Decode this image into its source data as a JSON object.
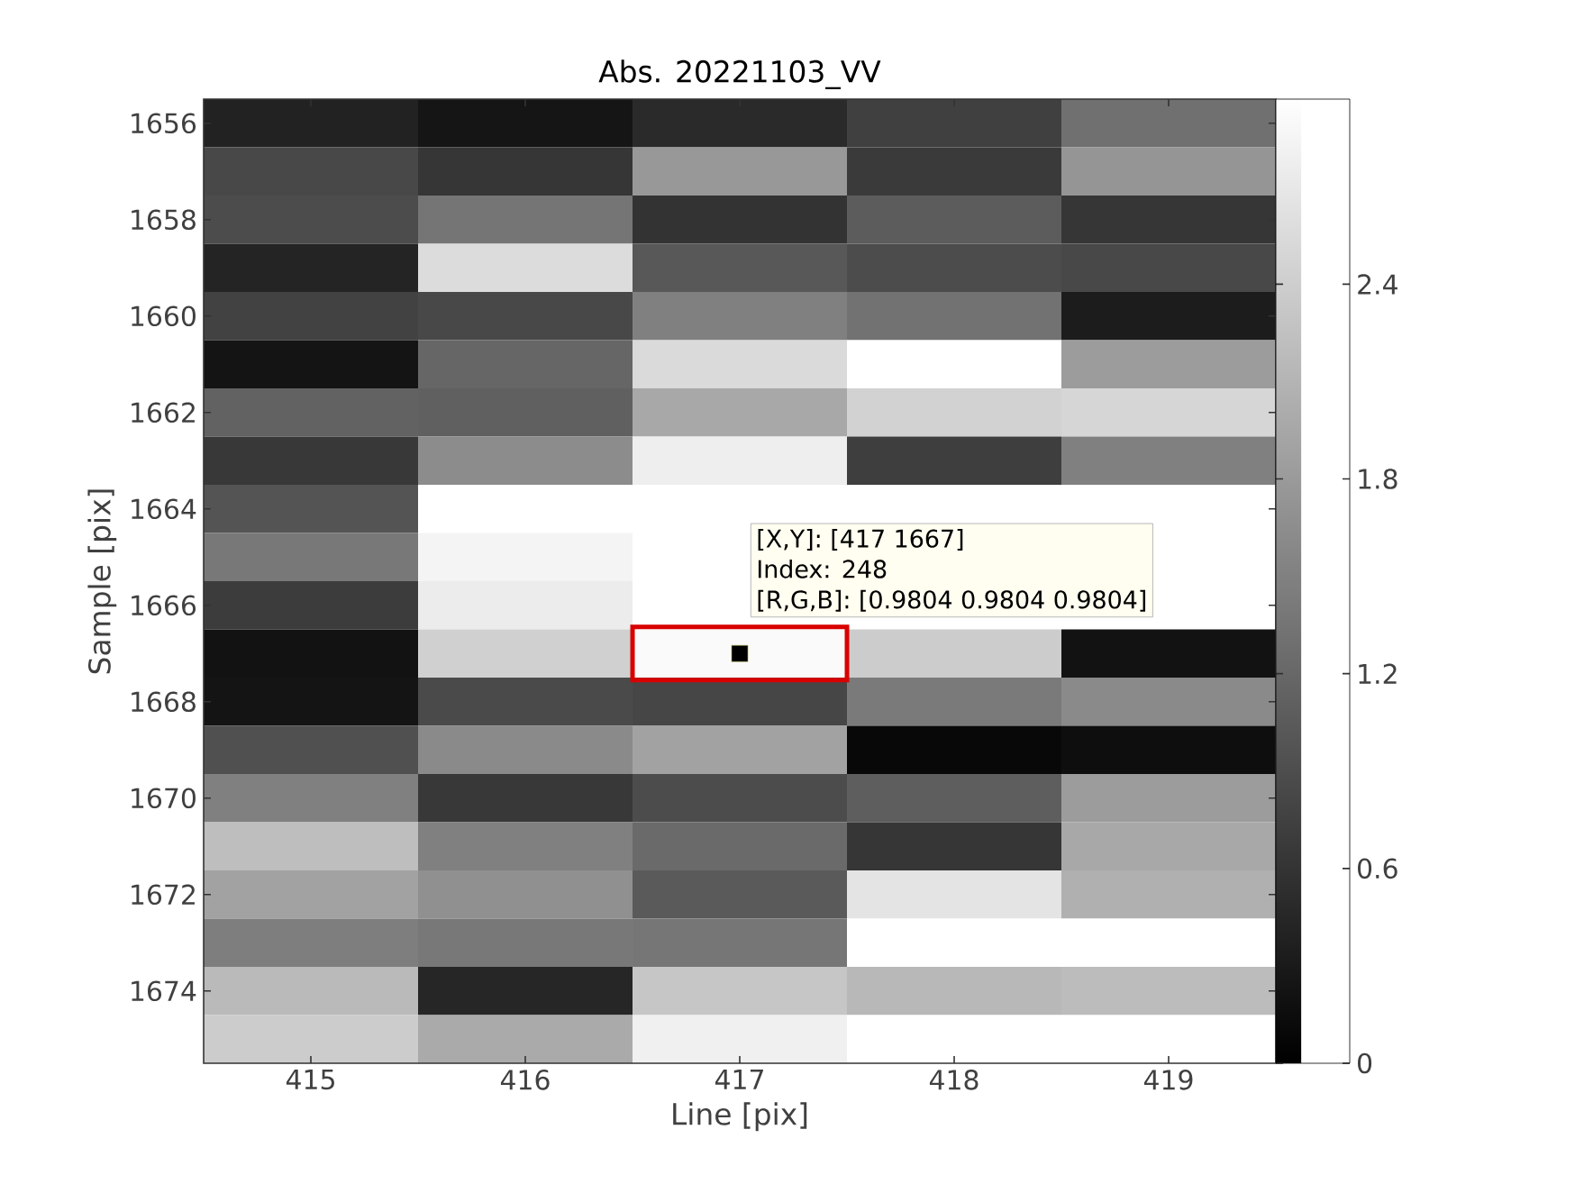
{
  "chart_data": {
    "type": "heatmap",
    "title": "Abs. 20221103_VV",
    "xlabel": "Line [pix]",
    "ylabel": "Sample [pix]",
    "categories": [
      "415",
      "416",
      "417",
      "418",
      "419"
    ],
    "y_categories": [
      "1656",
      null,
      "1658",
      null,
      "1660",
      null,
      "1662",
      null,
      "1664",
      null,
      "1666",
      null,
      "1668",
      null,
      "1670",
      null,
      "1672",
      null,
      "1674",
      null
    ],
    "cells": [
      [
        0.4,
        0.24,
        0.49,
        0.75,
        1.3
      ],
      [
        0.84,
        0.63,
        1.77,
        0.68,
        1.74
      ],
      [
        0.89,
        1.36,
        0.59,
        1.07,
        0.63
      ],
      [
        0.42,
        2.56,
        1.02,
        0.89,
        0.84
      ],
      [
        0.77,
        0.84,
        1.49,
        1.33,
        0.33
      ],
      [
        0.23,
        1.19,
        2.54,
        2.97,
        1.82
      ],
      [
        1.14,
        1.12,
        1.96,
        2.45,
        2.49
      ],
      [
        0.65,
        1.63,
        2.77,
        0.72,
        1.49
      ],
      [
        0.98,
        2.97,
        2.97,
        null,
        null
      ],
      [
        1.4,
        2.84,
        2.97,
        null,
        null
      ],
      [
        0.7,
        2.75,
        2.97,
        null,
        null
      ],
      [
        0.21,
        2.42,
        2.91,
        2.38,
        0.21
      ],
      [
        0.23,
        0.86,
        0.82,
        1.42,
        1.61
      ],
      [
        0.93,
        1.61,
        1.89,
        0.09,
        0.16
      ],
      [
        1.49,
        0.65,
        0.89,
        1.09,
        1.82
      ],
      [
        2.21,
        1.49,
        1.23,
        0.63,
        1.96
      ],
      [
        1.89,
        1.68,
        1.05,
        2.66,
        2.05
      ],
      [
        1.47,
        1.4,
        1.37,
        2.97,
        2.97
      ],
      [
        2.17,
        0.44,
        2.31,
        2.14,
        2.19
      ],
      [
        2.38,
        1.98,
        2.8,
        2.97,
        2.97
      ]
    ],
    "clim": [
      0,
      2.97
    ],
    "cticks": [
      0,
      0.6,
      1.2,
      1.8,
      2.4
    ],
    "annotations": [
      "[X,Y]: [417 1667]",
      "Index: 248",
      "[R,G,B]: [0.9804 0.9804 0.9804]"
    ]
  }
}
